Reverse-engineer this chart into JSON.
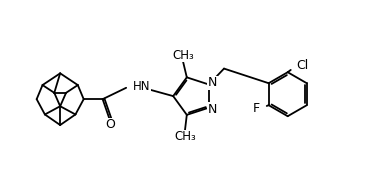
{
  "background": "#ffffff",
  "line_color": "#000000",
  "lw": 1.3,
  "figsize": [
    3.82,
    1.96
  ],
  "dpi": 100,
  "xlim": [
    0,
    10
  ],
  "ylim": [
    0,
    5
  ]
}
